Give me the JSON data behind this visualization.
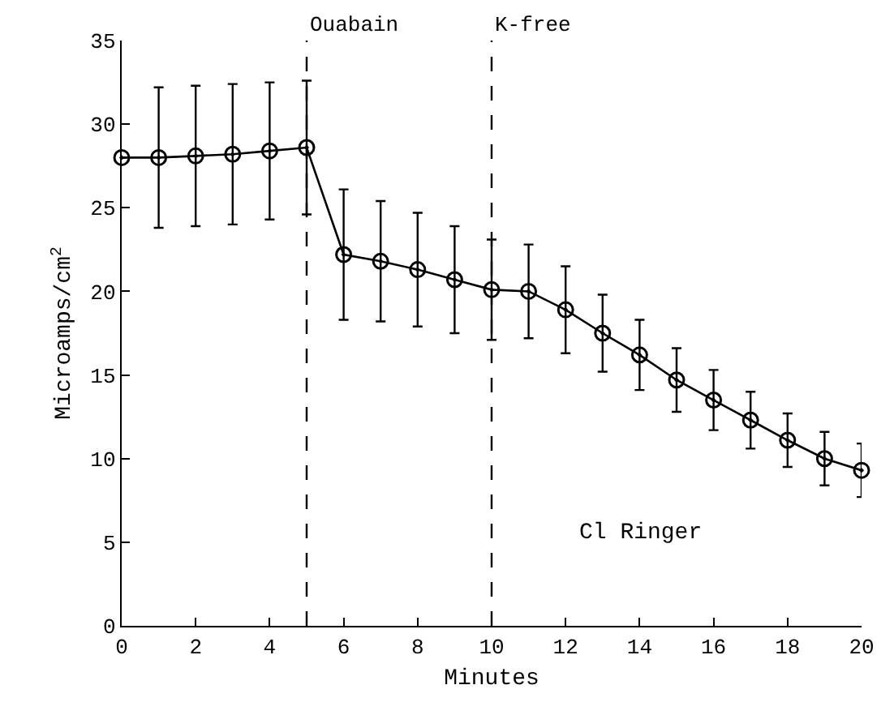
{
  "chart_data": {
    "type": "line",
    "xlabel": "Minutes",
    "ylabel": "Microamps/cm$^{2}$",
    "x": [
      0,
      1,
      2,
      3,
      4,
      5,
      6,
      7,
      8,
      9,
      10,
      11,
      12,
      13,
      14,
      15,
      16,
      17,
      18,
      19,
      20
    ],
    "series": [
      {
        "color": "#000000",
        "values": [
          28.0,
          28.0,
          28.1,
          28.2,
          28.4,
          28.6,
          22.2,
          21.8,
          21.3,
          20.7,
          20.1,
          20.0,
          18.9,
          17.5,
          16.2,
          14.7,
          13.5,
          12.3,
          11.1,
          10.0,
          9.3
        ],
        "errors": [
          null,
          4.2,
          4.2,
          4.2,
          4.1,
          4.0,
          3.9,
          3.6,
          3.4,
          3.2,
          3.0,
          2.8,
          2.6,
          2.3,
          2.1,
          1.9,
          1.8,
          1.7,
          1.6,
          1.6,
          1.6
        ]
      }
    ],
    "xlim": [
      0,
      20
    ],
    "xticks": [
      0,
      2,
      4,
      6,
      8,
      10,
      12,
      14,
      16,
      18,
      20
    ],
    "ylim": [
      0,
      35
    ],
    "yticks": [
      0,
      5,
      10,
      15,
      20,
      25,
      30,
      35
    ],
    "ref_lines": [
      {
        "axis": "x",
        "value": 5,
        "label": "Ouabain",
        "line_style": "dashed"
      },
      {
        "axis": "x",
        "value": 10,
        "label": "K-free",
        "line_style": "dashed"
      }
    ],
    "annotations": [
      "Cl Ringer"
    ],
    "marker": "circle",
    "line_style": "solid",
    "legend": false
  }
}
